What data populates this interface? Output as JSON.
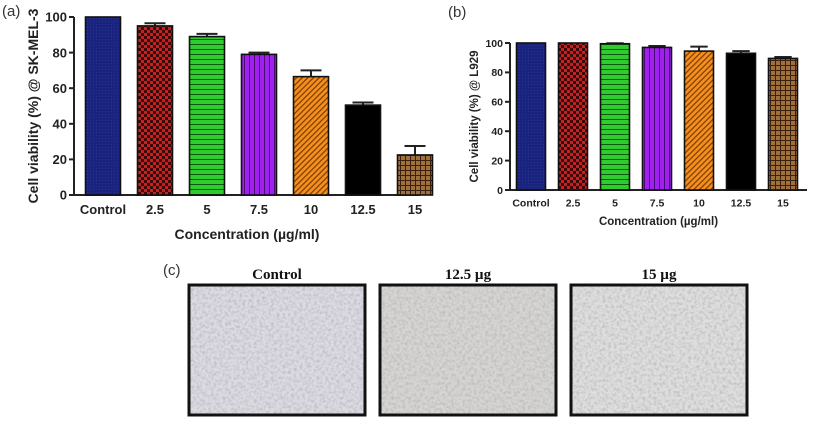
{
  "chart_data": [
    {
      "panel_label": "(a)",
      "type": "bar",
      "categories": [
        "Control",
        "2.5",
        "5",
        "7.5",
        "10",
        "12.5",
        "15"
      ],
      "values": [
        100,
        95,
        89,
        79,
        66.5,
        50.5,
        22.5
      ],
      "errors": [
        0,
        1.5,
        1.5,
        1,
        3.5,
        1.5,
        5
      ],
      "xlabel": "Concentration (µg/ml)",
      "ylabel": "Cell viability (%) @ SK-MEL-3",
      "ylim": [
        0,
        100
      ],
      "yticks": [
        0,
        20,
        40,
        60,
        80,
        100
      ],
      "grid": false,
      "colors": [
        "#1a237e",
        "#d32f2f",
        "#2ecc2e",
        "#a020f0",
        "#f5901e",
        "#000000",
        "#a0703a"
      ],
      "patterns": [
        "solid",
        "checker",
        "horizontal-stripes",
        "vertical-stripes",
        "diagonal-stripes",
        "solid",
        "grid"
      ]
    },
    {
      "panel_label": "(b)",
      "type": "bar",
      "categories": [
        "Control",
        "2.5",
        "5",
        "7.5",
        "10",
        "12.5",
        "15"
      ],
      "values": [
        100,
        100,
        99.5,
        97,
        94.5,
        93,
        89.5
      ],
      "errors": [
        0,
        0,
        0.3,
        1,
        3,
        1.5,
        1
      ],
      "xlabel": "Concentration (µg/ml)",
      "ylabel": "Cell viability (%) @ L929",
      "ylim": [
        0,
        100
      ],
      "yticks": [
        0,
        20,
        40,
        60,
        80,
        100
      ],
      "grid": false,
      "colors": [
        "#1a237e",
        "#d32f2f",
        "#2ecc2e",
        "#a020f0",
        "#f5901e",
        "#000000",
        "#a0703a"
      ],
      "patterns": [
        "solid",
        "checker",
        "horizontal-stripes",
        "vertical-stripes",
        "diagonal-stripes",
        "solid",
        "grid"
      ]
    }
  ],
  "micrographs": {
    "panel_label": "(c)",
    "titles": [
      "Control",
      "12.5 µg",
      "15 µg"
    ]
  }
}
